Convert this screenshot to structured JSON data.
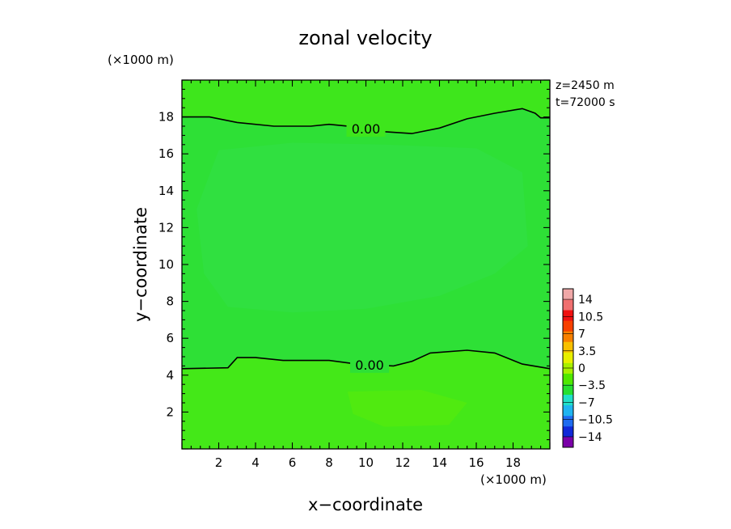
{
  "chart_data": {
    "type": "heatmap",
    "title": "zonal velocity",
    "xlabel": "x−coordinate",
    "ylabel": "y−coordinate",
    "x_unit_label": "(×1000 m)",
    "y_unit_label": "(×1000 m)",
    "info_lines": [
      "z=2450  m",
      "t=72000  s"
    ],
    "xlim": [
      0,
      20
    ],
    "ylim": [
      0,
      20
    ],
    "x_ticks": [
      2,
      4,
      6,
      8,
      10,
      12,
      14,
      16,
      18
    ],
    "y_ticks": [
      2,
      4,
      6,
      8,
      10,
      12,
      14,
      16,
      18
    ],
    "grid": false,
    "legend": "colorbar-right",
    "colorbar": {
      "levels": [
        -14,
        -10.5,
        -7,
        -3.5,
        0,
        3.5,
        7,
        10.5,
        14
      ],
      "labels": [
        "14",
        "10.5",
        "7",
        "3.5",
        "0",
        "−3.5",
        "−7",
        "−10.5",
        "−14"
      ],
      "colors": [
        "#7a00a8",
        "#1028d8",
        "#1e6cf0",
        "#1fb4f0",
        "#20e0c8",
        "#26e030",
        "#50e800",
        "#a8f000",
        "#e8f000",
        "#f8c000",
        "#f88000",
        "#f84000",
        "#f01010",
        "#f07070",
        "#f0a8a8"
      ]
    },
    "field_colors": {
      "background": "#3ee61c",
      "center": "#2ee036",
      "center_light": "#30e040",
      "top_band": "#3ee61c",
      "bottom_band": "#44e818",
      "bottom_patch": "#50ea10"
    },
    "contours": [
      {
        "level": "0.00",
        "points": [
          [
            0,
            18.0
          ],
          [
            1.5,
            18.0
          ],
          [
            3,
            17.7
          ],
          [
            5,
            17.5
          ],
          [
            7,
            17.5
          ],
          [
            8,
            17.6
          ],
          [
            9.5,
            17.45
          ],
          [
            11,
            17.2
          ],
          [
            12.5,
            17.1
          ],
          [
            14,
            17.4
          ],
          [
            15.5,
            17.9
          ],
          [
            17,
            18.2
          ],
          [
            18.5,
            18.45
          ],
          [
            19.2,
            18.2
          ],
          [
            19.5,
            17.95
          ],
          [
            20,
            17.95
          ]
        ],
        "label_x": 10
      },
      {
        "level": "0.00",
        "points": [
          [
            0,
            4.35
          ],
          [
            2.5,
            4.4
          ],
          [
            3,
            4.95
          ],
          [
            4,
            4.95
          ],
          [
            5.5,
            4.8
          ],
          [
            8,
            4.8
          ],
          [
            9.5,
            4.6
          ],
          [
            11.5,
            4.5
          ],
          [
            12.5,
            4.75
          ],
          [
            13.5,
            5.2
          ],
          [
            15.5,
            5.35
          ],
          [
            17,
            5.2
          ],
          [
            18.5,
            4.6
          ],
          [
            20,
            4.35
          ]
        ],
        "label_x": 10.2
      }
    ]
  }
}
